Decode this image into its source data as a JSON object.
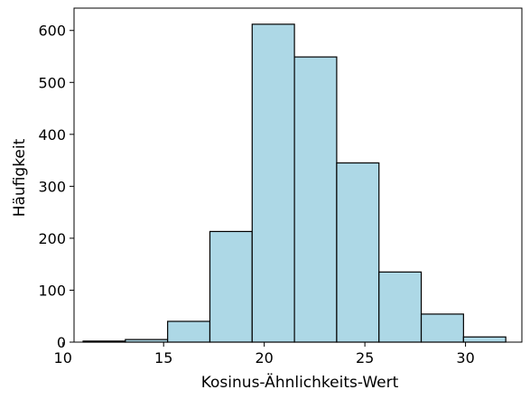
{
  "chart_data": {
    "type": "bar",
    "title": "",
    "xlabel": "Kosinus-Ähnlichkeits-Wert",
    "ylabel": "Häufigkeit",
    "xlim": [
      10.55,
      32.8
    ],
    "ylim": [
      0,
      643
    ],
    "grid": false,
    "bin_edges": [
      11.0,
      13.1,
      15.2,
      17.3,
      19.4,
      21.5,
      23.6,
      25.7,
      27.8,
      29.9,
      32.0
    ],
    "values": [
      2,
      5,
      40,
      213,
      612,
      549,
      345,
      135,
      54,
      10
    ],
    "xticks": [
      10,
      15,
      20,
      25,
      30
    ],
    "yticks": [
      0,
      100,
      200,
      300,
      400,
      500,
      600
    ],
    "bar_color": "#add8e6",
    "edge_color": "#000000"
  }
}
